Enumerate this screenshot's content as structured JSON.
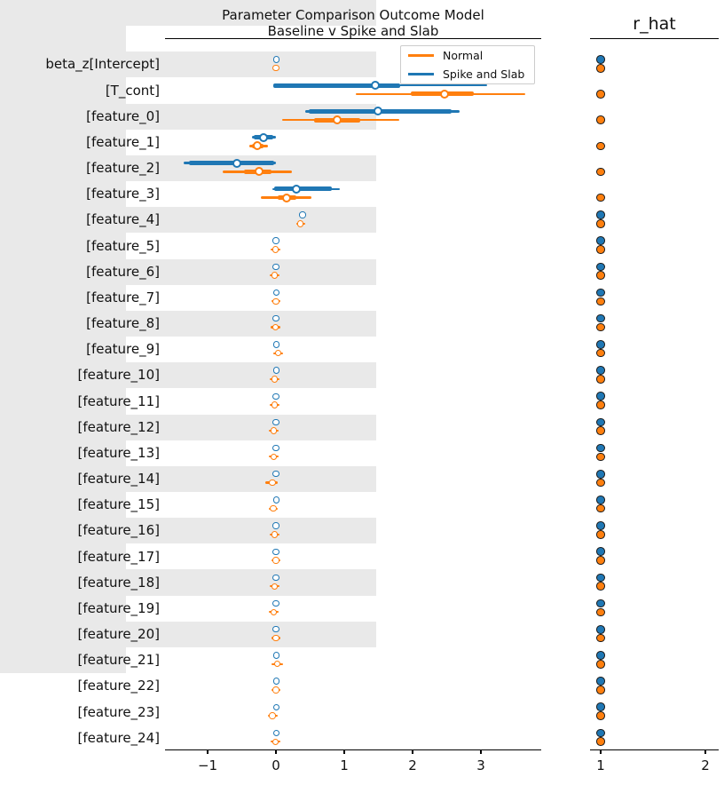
{
  "figure": {
    "title_line1": "Parameter Comparison Outcome Model",
    "title_line2": "Baseline v Spike and Slab",
    "rhat_title": "r_hat",
    "legend": [
      {
        "label": "Normal",
        "color": "#ff7f0e"
      },
      {
        "label": "Spike and Slab",
        "color": "#1f77b4"
      }
    ]
  },
  "colors": {
    "normal": "#ff7f0e",
    "spike": "#1f77b4",
    "stripe": "#e9e9e9",
    "spine": "#000000",
    "marker_edge": "#1a1a1a"
  },
  "chart_data": {
    "type": "forest",
    "title": "Parameter Comparison Outcome Model\nBaseline v Spike and Slab",
    "legend_position": "upper right",
    "series_names": [
      "Normal",
      "Spike and Slab"
    ],
    "panels": [
      {
        "name": "estimates",
        "xticks": [
          -1,
          0,
          1,
          2,
          3
        ],
        "xtick_labels": [
          "−1",
          "0",
          "1",
          "2",
          "3"
        ],
        "xlim": [
          -1.62,
          3.88
        ],
        "grid": false
      },
      {
        "name": "r_hat",
        "xticks": [
          1,
          2
        ],
        "xtick_labels": [
          "1",
          "2"
        ],
        "xlim": [
          0.9,
          2.13
        ],
        "grid": false
      }
    ],
    "rows": [
      {
        "label": "beta_z[Intercept]",
        "spike": {
          "m": 0.01
        },
        "normal": {
          "m": 0.0,
          "lo": -0.04,
          "hi": 0.03
        },
        "rhat": {
          "spike": 1.0,
          "normal": 1.0
        }
      },
      {
        "label": "[T_cont]",
        "spike": {
          "m": 1.45,
          "lo": -0.04,
          "hi": 3.09,
          "tlo": -0.04,
          "thi": 1.82
        },
        "normal": {
          "m": 2.47,
          "lo": 1.17,
          "hi": 3.65,
          "tlo": 1.97,
          "thi": 2.9
        },
        "rhat": {
          "normal": 1.0
        }
      },
      {
        "label": "[feature_0]",
        "spike": {
          "m": 1.49,
          "lo": 0.43,
          "hi": 2.69,
          "tlo": 0.48,
          "thi": 2.57
        },
        "normal": {
          "m": 0.9,
          "lo": 0.09,
          "hi": 1.8,
          "tlo": 0.56,
          "thi": 1.23
        },
        "rhat": {
          "normal": 1.0
        }
      },
      {
        "label": "[feature_1]",
        "spike": {
          "m": -0.18,
          "lo": -0.35,
          "hi": 0.0,
          "tlo": -0.32,
          "thi": -0.04
        },
        "normal": {
          "m": -0.27,
          "lo": -0.39,
          "hi": -0.12,
          "tlo": -0.35,
          "thi": -0.18
        },
        "rhat": {
          "normal": 1.0
        }
      },
      {
        "label": "[feature_2]",
        "spike": {
          "m": -0.57,
          "lo": -1.35,
          "hi": 0.0,
          "tlo": -1.27,
          "thi": -0.03
        },
        "normal": {
          "m": -0.25,
          "lo": -0.78,
          "hi": 0.23,
          "tlo": -0.47,
          "thi": -0.06
        },
        "rhat": {
          "normal": 1.0
        }
      },
      {
        "label": "[feature_3]",
        "spike": {
          "m": 0.3,
          "lo": -0.05,
          "hi": 0.93,
          "tlo": -0.03,
          "thi": 0.82
        },
        "normal": {
          "m": 0.16,
          "lo": -0.22,
          "hi": 0.52,
          "tlo": 0.03,
          "thi": 0.3
        },
        "rhat": {
          "normal": 1.0
        }
      },
      {
        "label": "[feature_4]",
        "spike": {
          "m": 0.39
        },
        "normal": {
          "m": 0.36,
          "lo": 0.3,
          "hi": 0.43
        },
        "rhat": {
          "spike": 1.0,
          "normal": 1.0
        }
      },
      {
        "label": "[feature_5]",
        "spike": {
          "m": 0.0
        },
        "normal": {
          "m": -0.01,
          "lo": -0.08,
          "hi": 0.06
        },
        "rhat": {
          "spike": 1.0,
          "normal": 1.0
        }
      },
      {
        "label": "[feature_6]",
        "spike": {
          "m": 0.0
        },
        "normal": {
          "m": -0.02,
          "lo": -0.09,
          "hi": 0.05
        },
        "rhat": {
          "spike": 1.0,
          "normal": 1.0
        }
      },
      {
        "label": "[feature_7]",
        "spike": {
          "m": 0.01
        },
        "normal": {
          "m": 0.0,
          "lo": -0.07,
          "hi": 0.07
        },
        "rhat": {
          "spike": 1.0,
          "normal": 1.0
        }
      },
      {
        "label": "[feature_8]",
        "spike": {
          "m": 0.0
        },
        "normal": {
          "m": -0.01,
          "lo": -0.08,
          "hi": 0.06
        },
        "rhat": {
          "spike": 1.0,
          "normal": 1.0
        }
      },
      {
        "label": "[feature_9]",
        "spike": {
          "m": 0.01
        },
        "normal": {
          "m": 0.03,
          "lo": -0.04,
          "hi": 0.1
        },
        "rhat": {
          "spike": 1.0,
          "normal": 1.0
        }
      },
      {
        "label": "[feature_10]",
        "spike": {
          "m": 0.01
        },
        "normal": {
          "m": -0.02,
          "lo": -0.09,
          "hi": 0.05
        },
        "rhat": {
          "spike": 1.0,
          "normal": 1.0
        }
      },
      {
        "label": "[feature_11]",
        "spike": {
          "m": 0.0
        },
        "normal": {
          "m": -0.02,
          "lo": -0.09,
          "hi": 0.05
        },
        "rhat": {
          "spike": 1.0,
          "normal": 1.0
        }
      },
      {
        "label": "[feature_12]",
        "spike": {
          "m": 0.0
        },
        "normal": {
          "m": -0.03,
          "lo": -0.1,
          "hi": 0.04
        },
        "rhat": {
          "spike": 1.0,
          "normal": 1.0
        }
      },
      {
        "label": "[feature_13]",
        "spike": {
          "m": 0.0
        },
        "normal": {
          "m": -0.03,
          "lo": -0.1,
          "hi": 0.04
        },
        "rhat": {
          "spike": 1.0,
          "normal": 1.0
        }
      },
      {
        "label": "[feature_14]",
        "spike": {
          "m": 0.0
        },
        "normal": {
          "m": -0.05,
          "lo": -0.16,
          "hi": 0.02
        },
        "rhat": {
          "spike": 1.0,
          "normal": 1.0
        }
      },
      {
        "label": "[feature_15]",
        "spike": {
          "m": 0.01
        },
        "normal": {
          "m": -0.04,
          "lo": -0.11,
          "hi": 0.03
        },
        "rhat": {
          "spike": 1.0,
          "normal": 1.0
        }
      },
      {
        "label": "[feature_16]",
        "spike": {
          "m": 0.0
        },
        "normal": {
          "m": -0.02,
          "lo": -0.09,
          "hi": 0.05
        },
        "rhat": {
          "spike": 1.0,
          "normal": 1.0
        }
      },
      {
        "label": "[feature_17]",
        "spike": {
          "m": 0.0
        },
        "normal": {
          "m": 0.0,
          "lo": -0.07,
          "hi": 0.07
        },
        "rhat": {
          "spike": 1.0,
          "normal": 1.0
        }
      },
      {
        "label": "[feature_18]",
        "spike": {
          "m": 0.0
        },
        "normal": {
          "m": -0.02,
          "lo": -0.09,
          "hi": 0.05
        },
        "rhat": {
          "spike": 1.0,
          "normal": 1.0
        }
      },
      {
        "label": "[feature_19]",
        "spike": {
          "m": 0.0
        },
        "normal": {
          "m": -0.03,
          "lo": -0.1,
          "hi": 0.04
        },
        "rhat": {
          "spike": 1.0,
          "normal": 1.0
        }
      },
      {
        "label": "[feature_20]",
        "spike": {
          "m": 0.0
        },
        "normal": {
          "m": 0.0,
          "lo": -0.07,
          "hi": 0.07
        },
        "rhat": {
          "spike": 1.0,
          "normal": 1.0
        }
      },
      {
        "label": "[feature_21]",
        "spike": {
          "m": 0.01
        },
        "normal": {
          "m": 0.02,
          "lo": -0.06,
          "hi": 0.1
        },
        "rhat": {
          "spike": 1.0,
          "normal": 1.0
        }
      },
      {
        "label": "[feature_22]",
        "spike": {
          "m": 0.01
        },
        "normal": {
          "m": 0.0,
          "lo": -0.07,
          "hi": 0.07
        },
        "rhat": {
          "spike": 1.0,
          "normal": 1.0
        }
      },
      {
        "label": "[feature_23]",
        "spike": {
          "m": 0.01
        },
        "normal": {
          "m": -0.05,
          "lo": -0.12,
          "hi": 0.03
        },
        "rhat": {
          "spike": 1.0,
          "normal": 1.0
        }
      },
      {
        "label": "[feature_24]",
        "spike": {
          "m": 0.01
        },
        "normal": {
          "m": -0.01,
          "lo": -0.08,
          "hi": 0.06
        },
        "rhat": {
          "spike": 1.0,
          "normal": 1.0
        }
      }
    ]
  }
}
